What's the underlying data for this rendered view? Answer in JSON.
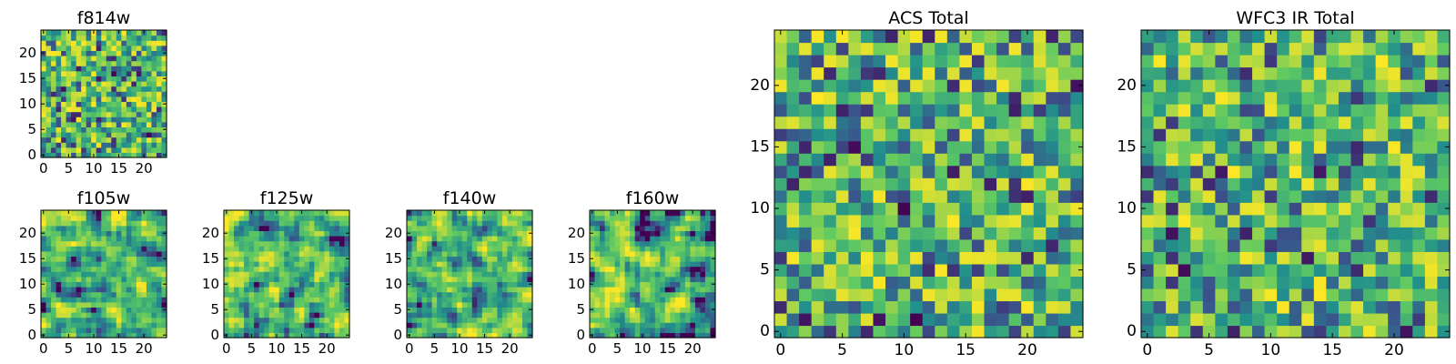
{
  "figure": {
    "colormap": "viridis",
    "colors": [
      "#440154",
      "#3b528b",
      "#21918c",
      "#5ec962",
      "#fde725"
    ]
  },
  "chart_data": [
    {
      "type": "heatmap",
      "title": "f814w",
      "grid_size": 25,
      "x_ticks": [
        "0",
        "5",
        "10",
        "15",
        "20"
      ],
      "y_ticks": [
        "0",
        "5",
        "10",
        "15",
        "20"
      ],
      "xlim": [
        -0.5,
        24.5
      ],
      "ylim": [
        -0.5,
        24.5
      ],
      "texture": "uncorrelated pixel noise, mostly green-yellow, sparse dark pixels"
    },
    {
      "type": "heatmap",
      "title": "f105w",
      "grid_size": 25,
      "x_ticks": [
        "0",
        "5",
        "10",
        "15",
        "20"
      ],
      "y_ticks": [
        "0",
        "5",
        "10",
        "15",
        "20"
      ],
      "xlim": [
        -0.5,
        24.5
      ],
      "ylim": [
        -0.5,
        24.5
      ],
      "texture": "spatially correlated noise, green-yellow with scattered dark blotches"
    },
    {
      "type": "heatmap",
      "title": "f125w",
      "grid_size": 25,
      "x_ticks": [
        "0",
        "5",
        "10",
        "15",
        "20"
      ],
      "y_ticks": [
        "0",
        "5",
        "10",
        "15",
        "20"
      ],
      "xlim": [
        -0.5,
        24.5
      ],
      "ylim": [
        -0.5,
        24.5
      ],
      "texture": "spatially correlated noise"
    },
    {
      "type": "heatmap",
      "title": "f140w",
      "grid_size": 25,
      "x_ticks": [
        "0",
        "5",
        "10",
        "15",
        "20"
      ],
      "y_ticks": [
        "0",
        "5",
        "10",
        "15",
        "20"
      ],
      "xlim": [
        -0.5,
        24.5
      ],
      "ylim": [
        -0.5,
        24.5
      ],
      "texture": "spatially correlated noise, dark spot near x=16, y=6"
    },
    {
      "type": "heatmap",
      "title": "f160w",
      "grid_size": 25,
      "x_ticks": [
        "0",
        "5",
        "10",
        "15",
        "20"
      ],
      "y_ticks": [
        "0",
        "5",
        "10",
        "15",
        "20"
      ],
      "xlim": [
        -0.5,
        24.5
      ],
      "ylim": [
        -0.5,
        24.5
      ],
      "texture": "spatially correlated noise"
    },
    {
      "type": "heatmap",
      "title": "ACS Total",
      "grid_size": 25,
      "x_ticks": [
        "0",
        "5",
        "10",
        "15",
        "20"
      ],
      "y_ticks": [
        "0",
        "5",
        "10",
        "15",
        "20"
      ],
      "xlim": [
        -0.5,
        24.5
      ],
      "ylim": [
        -0.5,
        24.5
      ],
      "texture": "uncorrelated pixel noise, mostly green-yellow, sparse dark pixels"
    },
    {
      "type": "heatmap",
      "title": "WFC3 IR Total",
      "grid_size": 25,
      "x_ticks": [
        "0",
        "5",
        "10",
        "15",
        "20"
      ],
      "y_ticks": [
        "0",
        "5",
        "10",
        "15",
        "20"
      ],
      "xlim": [
        -0.5,
        24.5
      ],
      "ylim": [
        -0.5,
        24.5
      ],
      "texture": "uncorrelated pixel noise, mostly green-yellow, sparse dark pixels"
    }
  ]
}
